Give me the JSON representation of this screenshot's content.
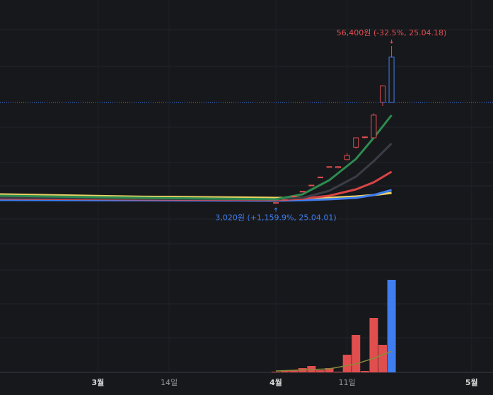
{
  "chart_data": {
    "type": "candlestick",
    "high_label": "56,400원 (-32.5%, 25.04.18)",
    "low_label": "3,020원 (+1,159.9%, 25.04.01)",
    "xlim": [
      -31,
      24.4
    ],
    "xticks": [
      {
        "value": -20,
        "label": "3월"
      },
      {
        "value": -12,
        "label": "14일"
      },
      {
        "value": 0,
        "label": "4월"
      },
      {
        "value": 8,
        "label": "11일"
      },
      {
        "value": 22,
        "label": "5월"
      }
    ],
    "ylim": [
      -12000,
      72000
    ],
    "volume_ylim": [
      0,
      170
    ],
    "up_color": "#e04e4e",
    "down_color": "#3f7ef0",
    "candles": {
      "x": [
        0,
        1,
        2,
        3,
        4,
        5,
        6,
        7,
        8,
        9,
        10,
        11,
        12,
        13
      ],
      "open": [
        3100,
        4160,
        5400,
        7020,
        9120,
        11860,
        15410,
        15000,
        17800,
        22000,
        25400,
        25200,
        37200,
        52600
      ],
      "high": [
        3300,
        4160,
        5400,
        7020,
        9120,
        11860,
        15410,
        15600,
        20000,
        25300,
        25600,
        33500,
        42800,
        56400
      ],
      "low": [
        3020,
        4160,
        5400,
        7020,
        9120,
        11860,
        15410,
        14800,
        17500,
        21500,
        25000,
        25000,
        36000,
        37200
      ],
      "close": [
        3200,
        4160,
        5400,
        7020,
        9120,
        11860,
        15410,
        15400,
        19200,
        25200,
        25500,
        32900,
        42800,
        37200
      ],
      "volume": [
        1,
        2,
        3,
        6,
        9,
        3,
        6,
        1,
        25,
        53,
        2,
        77,
        39,
        131
      ]
    },
    "moving_averages": {
      "x": [
        -31,
        -15,
        0,
        3,
        6,
        9,
        11,
        13
      ],
      "series": [
        {
          "color": "#f0d264",
          "values": [
            6000,
            5200,
            4800,
            4800,
            4800,
            5280,
            5760,
            6480
          ]
        },
        {
          "color": "#3f7ef0",
          "values": [
            4080,
            3950,
            3840,
            4000,
            4320,
            4800,
            5760,
            7440
          ]
        },
        {
          "color": "#d94545",
          "values": [
            4560,
            4300,
            4080,
            4500,
            5520,
            7680,
            10080,
            13680
          ]
        },
        {
          "color": "#3a3d46",
          "values": [
            4800,
            4500,
            4320,
            4800,
            7200,
            12000,
            17280,
            23280
          ]
        },
        {
          "color": "#2e8b4f",
          "values": [
            5520,
            4800,
            4320,
            6000,
            10800,
            18000,
            25200,
            32880
          ]
        }
      ]
    },
    "volume_average": {
      "x": [
        0,
        6,
        9,
        11,
        13
      ],
      "color": "#8a8a3a",
      "values": [
        2,
        5,
        12,
        20,
        30
      ]
    }
  }
}
